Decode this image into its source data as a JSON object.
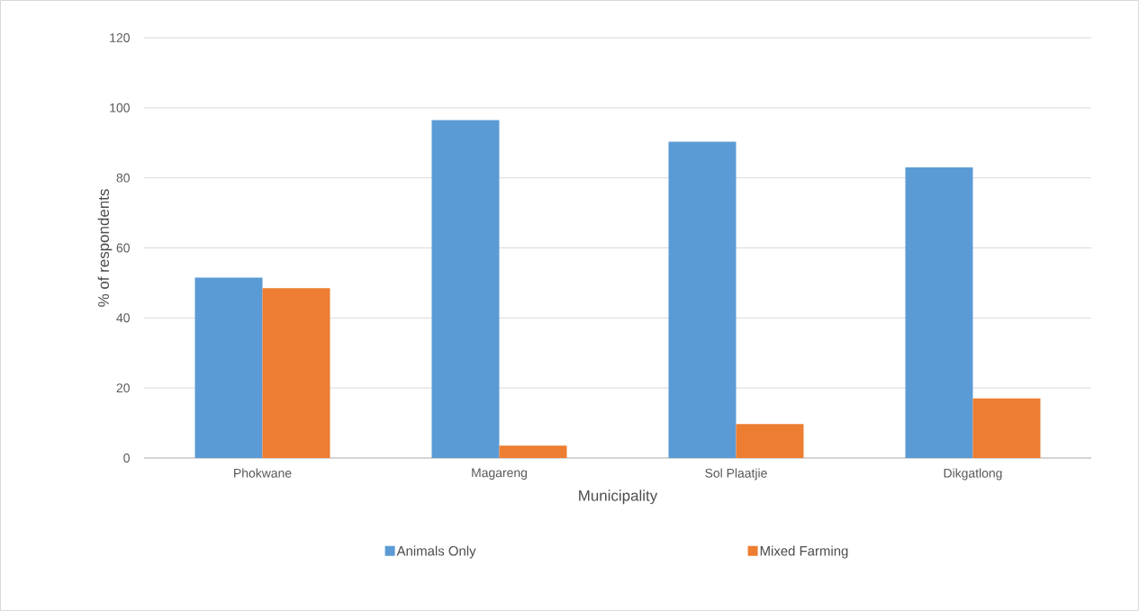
{
  "chart_data": {
    "type": "bar",
    "xlabel": "Municipality",
    "ylabel": "% of respondents",
    "categories": [
      "Phokwane",
      "Magareng",
      "Sol Plaatjie",
      "Dikgatlong"
    ],
    "series": [
      {
        "name": "Animals Only",
        "color": "#5b9bd5",
        "values": [
          51.5,
          96.5,
          90.3,
          83
        ]
      },
      {
        "name": "Mixed Farming",
        "color": "#ed7d31",
        "values": [
          48.5,
          3.5,
          9.7,
          17
        ]
      }
    ],
    "ylim": [
      0,
      120
    ],
    "yticks": [
      0,
      20,
      40,
      60,
      80,
      100,
      120
    ],
    "grid": "y",
    "legend": "bottom"
  }
}
